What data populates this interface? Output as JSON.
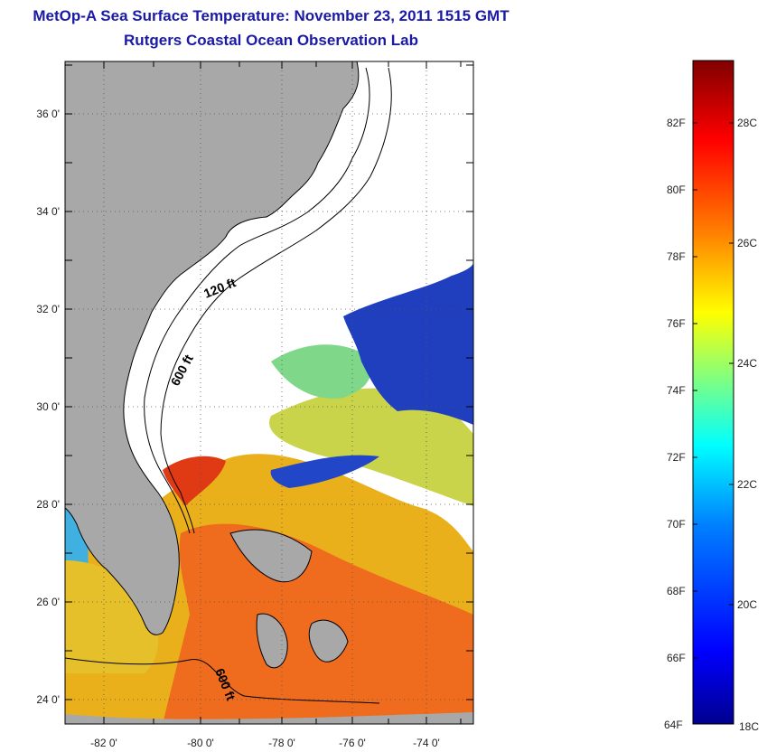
{
  "header": {
    "title": "MetOp-A Sea Surface Temperature:  November 23, 2011 1515 GMT",
    "subtitle": "Rutgers Coastal Ocean Observation Lab"
  },
  "map": {
    "lat_ticks": [
      "24 0'",
      "26 0'",
      "28 0'",
      "30 0'",
      "32 0'",
      "34 0'",
      "36 0'"
    ],
    "lon_ticks": [
      "-82 0'",
      "-80 0'",
      "-78 0'",
      "-76 0'",
      "-74 0'"
    ],
    "contour_labels": [
      "120 ft",
      "600 ft",
      "600 ft"
    ],
    "colors": {
      "land": "#a8a8a8",
      "cloud": "#ffffff",
      "frame": "#000000"
    }
  },
  "colorbar": {
    "fahrenheit_labels": [
      "82F",
      "80F",
      "78F",
      "76F",
      "74F",
      "72F",
      "70F",
      "68F",
      "66F",
      "64F"
    ],
    "celsius_labels": [
      "28C",
      "26C",
      "24C",
      "22C",
      "20C",
      "18C"
    ],
    "range_celsius": [
      18,
      29.3
    ],
    "colormap": [
      "#00008f",
      "#0000ff",
      "#0080ff",
      "#00ffff",
      "#80ff80",
      "#ffff00",
      "#ff8000",
      "#ff0000",
      "#800000"
    ]
  }
}
